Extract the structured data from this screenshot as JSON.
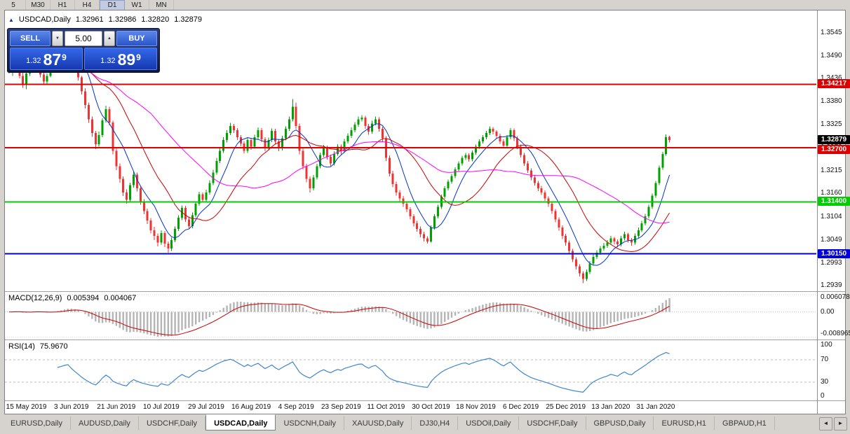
{
  "toolbar": {
    "timeframes": [
      "5",
      "M30",
      "H1",
      "H4",
      "D1",
      "W1",
      "MN"
    ],
    "active": "D1"
  },
  "chart_header": {
    "symbol": "USDCAD,Daily",
    "open": "1.32961",
    "high": "1.32986",
    "low": "1.32820",
    "close": "1.32879"
  },
  "trade_panel": {
    "sell_label": "SELL",
    "buy_label": "BUY",
    "volume": "5.00",
    "sell_price": {
      "prefix": "1.32",
      "big": "87",
      "sup": "9"
    },
    "buy_price": {
      "prefix": "1.32",
      "big": "89",
      "sup": "9"
    }
  },
  "price_axis": {
    "labels": [
      "1.3545",
      "1.3490",
      "1.3436",
      "1.3380",
      "1.3325",
      "1.3270",
      "1.3215",
      "1.3160",
      "1.3104",
      "1.3049",
      "1.2993",
      "1.2939"
    ]
  },
  "hlines": [
    {
      "price": 1.34217,
      "label": "1.34217",
      "color": "#dd0000"
    },
    {
      "price": 1.327,
      "label": "1.32700",
      "color": "#dd0000"
    },
    {
      "price": 1.314,
      "label": "1.31400",
      "color": "#00cc00"
    },
    {
      "price": 1.3015,
      "label": "1.30150",
      "color": "#0000dd"
    }
  ],
  "current_price": {
    "value": 1.32879,
    "label": "1.32879",
    "color": "#000000"
  },
  "macd_panel": {
    "title": "MACD(12,26,9)",
    "main_value": "0.005394",
    "signal_value": "0.004067",
    "axis_max": "0.006078",
    "axis_zero": "0.00",
    "axis_min": "-0.008965"
  },
  "rsi_panel": {
    "title": "RSI(14)",
    "value": "75.9670",
    "axis": [
      "100",
      "70",
      "30",
      "0"
    ]
  },
  "date_axis": {
    "labels": [
      "15 May 2019",
      "3 Jun 2019",
      "21 Jun 2019",
      "10 Jul 2019",
      "29 Jul 2019",
      "16 Aug 2019",
      "4 Sep 2019",
      "23 Sep 2019",
      "11 Oct 2019",
      "30 Oct 2019",
      "18 Nov 2019",
      "6 Dec 2019",
      "25 Dec 2019",
      "13 Jan 2020",
      "31 Jan 2020"
    ]
  },
  "tabs": {
    "items": [
      "EURUSD,Daily",
      "AUDUSD,Daily",
      "USDCHF,Daily",
      "USDCAD,Daily",
      "USDCNH,Daily",
      "XAUUSD,Daily",
      "DJ30,H4",
      "USDOil,Daily",
      "USDCHF,Daily",
      "GBPUSD,Daily",
      "EURUSD,H1",
      "GBPAUD,H1"
    ],
    "active_index": 3
  },
  "chart_data": {
    "type": "candlestick",
    "symbol": "USDCAD",
    "timeframe": "Daily",
    "colors": {
      "up": "#00a000",
      "down": "#ee3333"
    },
    "first_label_bar": 5,
    "label_step": 13,
    "overlays": [
      {
        "name": "ma-fast",
        "period": 8,
        "color": "#0033cc"
      },
      {
        "name": "ma-medium",
        "period": 20,
        "color": "#cc0000"
      },
      {
        "name": "ma-slow",
        "period": 42,
        "color": "#ff00ff"
      }
    ],
    "macd": {
      "fast": 12,
      "slow": 26,
      "signal": 9,
      "scale_max": 0.006078,
      "scale_min": -0.008965,
      "hist_color": "#b4b4b4",
      "signal_color": "#cc0000"
    },
    "rsi": {
      "period": 14,
      "levels": [
        70,
        30
      ],
      "color": "#3f85cc"
    },
    "candles": [
      [
        1.3465,
        1.3478,
        1.3448,
        1.3455
      ],
      [
        1.3455,
        1.347,
        1.3442,
        1.3462
      ],
      [
        1.3462,
        1.3484,
        1.3456,
        1.3478
      ],
      [
        1.3478,
        1.3486,
        1.3436,
        1.3442
      ],
      [
        1.3442,
        1.3452,
        1.3413,
        1.342
      ],
      [
        1.342,
        1.3458,
        1.341,
        1.3448
      ],
      [
        1.3448,
        1.3478,
        1.3442,
        1.347
      ],
      [
        1.347,
        1.3492,
        1.3464,
        1.3485
      ],
      [
        1.3485,
        1.349,
        1.3456,
        1.3462
      ],
      [
        1.3462,
        1.347,
        1.3438,
        1.3445
      ],
      [
        1.3445,
        1.3452,
        1.3422,
        1.3428
      ],
      [
        1.3428,
        1.3448,
        1.3423,
        1.3442
      ],
      [
        1.3442,
        1.3464,
        1.3438,
        1.3458
      ],
      [
        1.3458,
        1.3478,
        1.3452,
        1.3472
      ],
      [
        1.3472,
        1.3494,
        1.3468,
        1.3488
      ],
      [
        1.3488,
        1.3504,
        1.3482,
        1.3498
      ],
      [
        1.3498,
        1.3516,
        1.3492,
        1.351
      ],
      [
        1.351,
        1.3528,
        1.3504,
        1.3518
      ],
      [
        1.3518,
        1.3522,
        1.3486,
        1.3492
      ],
      [
        1.3492,
        1.3498,
        1.3458,
        1.3465
      ],
      [
        1.3465,
        1.3472,
        1.3431,
        1.3438
      ],
      [
        1.3438,
        1.3442,
        1.3397,
        1.3405
      ],
      [
        1.3405,
        1.3412,
        1.3364,
        1.3372
      ],
      [
        1.3372,
        1.3378,
        1.3329,
        1.3338
      ],
      [
        1.3338,
        1.3344,
        1.3296,
        1.3305
      ],
      [
        1.3305,
        1.331,
        1.3266,
        1.3278
      ],
      [
        1.3278,
        1.3308,
        1.3272,
        1.33
      ],
      [
        1.33,
        1.334,
        1.3295,
        1.3335
      ],
      [
        1.3335,
        1.337,
        1.333,
        1.3362
      ],
      [
        1.3362,
        1.3368,
        1.3323,
        1.333
      ],
      [
        1.333,
        1.3334,
        1.3254,
        1.3262
      ],
      [
        1.3262,
        1.327,
        1.3216,
        1.3225
      ],
      [
        1.3225,
        1.3232,
        1.3186,
        1.3195
      ],
      [
        1.3195,
        1.3201,
        1.3154,
        1.3162
      ],
      [
        1.3162,
        1.317,
        1.3135,
        1.3145
      ],
      [
        1.3145,
        1.3186,
        1.314,
        1.318
      ],
      [
        1.318,
        1.3212,
        1.3174,
        1.3205
      ],
      [
        1.3205,
        1.321,
        1.3165,
        1.3172
      ],
      [
        1.3172,
        1.3178,
        1.3133,
        1.314
      ],
      [
        1.314,
        1.3146,
        1.311,
        1.3118
      ],
      [
        1.3118,
        1.3124,
        1.3087,
        1.3095
      ],
      [
        1.3095,
        1.3101,
        1.3064,
        1.3072
      ],
      [
        1.3072,
        1.308,
        1.3048,
        1.3058
      ],
      [
        1.3058,
        1.3064,
        1.3033,
        1.3042
      ],
      [
        1.3042,
        1.3072,
        1.3037,
        1.3065
      ],
      [
        1.3065,
        1.307,
        1.3031,
        1.304
      ],
      [
        1.304,
        1.3045,
        1.3018,
        1.3028
      ],
      [
        1.3028,
        1.3054,
        1.3022,
        1.3048
      ],
      [
        1.3048,
        1.3081,
        1.3043,
        1.3075
      ],
      [
        1.3075,
        1.3108,
        1.307,
        1.3102
      ],
      [
        1.3102,
        1.3131,
        1.3096,
        1.3125
      ],
      [
        1.3125,
        1.313,
        1.3092,
        1.3098
      ],
      [
        1.3098,
        1.3104,
        1.3074,
        1.3082
      ],
      [
        1.3082,
        1.3114,
        1.3077,
        1.3108
      ],
      [
        1.3108,
        1.3141,
        1.3103,
        1.3135
      ],
      [
        1.3135,
        1.3164,
        1.313,
        1.3158
      ],
      [
        1.3158,
        1.3162,
        1.3138,
        1.3145
      ],
      [
        1.3145,
        1.3169,
        1.314,
        1.3162
      ],
      [
        1.3162,
        1.3192,
        1.3157,
        1.3185
      ],
      [
        1.3185,
        1.3217,
        1.318,
        1.321
      ],
      [
        1.321,
        1.3245,
        1.3205,
        1.3238
      ],
      [
        1.3238,
        1.3269,
        1.3233,
        1.3262
      ],
      [
        1.3262,
        1.3295,
        1.3257,
        1.3288
      ],
      [
        1.3288,
        1.3312,
        1.3282,
        1.3305
      ],
      [
        1.3305,
        1.3329,
        1.33,
        1.3322
      ],
      [
        1.3322,
        1.3327,
        1.3305,
        1.3312
      ],
      [
        1.3312,
        1.3317,
        1.3288,
        1.3295
      ],
      [
        1.3295,
        1.33,
        1.3273,
        1.328
      ],
      [
        1.328,
        1.3285,
        1.3256,
        1.3262
      ],
      [
        1.3262,
        1.3294,
        1.3257,
        1.3288
      ],
      [
        1.3288,
        1.3293,
        1.3265,
        1.3272
      ],
      [
        1.3272,
        1.3301,
        1.3267,
        1.3295
      ],
      [
        1.3295,
        1.3318,
        1.329,
        1.3312
      ],
      [
        1.3312,
        1.3317,
        1.3283,
        1.329
      ],
      [
        1.329,
        1.3295,
        1.3261,
        1.3268
      ],
      [
        1.3268,
        1.3294,
        1.3263,
        1.3288
      ],
      [
        1.3288,
        1.3316,
        1.3283,
        1.331
      ],
      [
        1.331,
        1.3315,
        1.3279,
        1.3285
      ],
      [
        1.3285,
        1.329,
        1.3261,
        1.3268
      ],
      [
        1.3268,
        1.3298,
        1.3263,
        1.3292
      ],
      [
        1.3292,
        1.3321,
        1.3287,
        1.3315
      ],
      [
        1.3315,
        1.3344,
        1.331,
        1.3338
      ],
      [
        1.3338,
        1.3386,
        1.3333,
        1.3368
      ],
      [
        1.3368,
        1.3378,
        1.3315,
        1.3322
      ],
      [
        1.3322,
        1.3328,
        1.3254,
        1.3262
      ],
      [
        1.3262,
        1.3268,
        1.3218,
        1.3225
      ],
      [
        1.3225,
        1.3231,
        1.3187,
        1.3195
      ],
      [
        1.3195,
        1.3201,
        1.3162,
        1.3172
      ],
      [
        1.3172,
        1.3204,
        1.3167,
        1.3198
      ],
      [
        1.3198,
        1.3231,
        1.3193,
        1.3225
      ],
      [
        1.3225,
        1.3258,
        1.322,
        1.3252
      ],
      [
        1.3252,
        1.3276,
        1.3247,
        1.327
      ],
      [
        1.327,
        1.3275,
        1.3241,
        1.3248
      ],
      [
        1.3248,
        1.3253,
        1.3225,
        1.3232
      ],
      [
        1.3232,
        1.3261,
        1.3227,
        1.3255
      ],
      [
        1.3255,
        1.3278,
        1.325,
        1.3272
      ],
      [
        1.3272,
        1.3277,
        1.3254,
        1.3262
      ],
      [
        1.3262,
        1.3291,
        1.3257,
        1.3285
      ],
      [
        1.3285,
        1.3304,
        1.328,
        1.3298
      ],
      [
        1.3298,
        1.3318,
        1.3293,
        1.3312
      ],
      [
        1.3312,
        1.3331,
        1.3307,
        1.3325
      ],
      [
        1.3325,
        1.3344,
        1.332,
        1.3338
      ],
      [
        1.3338,
        1.3348,
        1.3333,
        1.3342
      ],
      [
        1.3342,
        1.3346,
        1.3315,
        1.3322
      ],
      [
        1.3322,
        1.3327,
        1.3301,
        1.3308
      ],
      [
        1.3308,
        1.3334,
        1.3303,
        1.3328
      ],
      [
        1.3328,
        1.3344,
        1.3323,
        1.3338
      ],
      [
        1.3338,
        1.3343,
        1.3308,
        1.3315
      ],
      [
        1.3315,
        1.332,
        1.3285,
        1.3292
      ],
      [
        1.3292,
        1.3297,
        1.3238,
        1.3245
      ],
      [
        1.3245,
        1.3251,
        1.3201,
        1.3208
      ],
      [
        1.3208,
        1.3214,
        1.3175,
        1.3182
      ],
      [
        1.3182,
        1.3188,
        1.3155,
        1.3162
      ],
      [
        1.3162,
        1.3168,
        1.3141,
        1.3148
      ],
      [
        1.3148,
        1.3154,
        1.3128,
        1.3135
      ],
      [
        1.3135,
        1.3141,
        1.3115,
        1.3122
      ],
      [
        1.3122,
        1.3127,
        1.3098,
        1.3105
      ],
      [
        1.3105,
        1.311,
        1.3081,
        1.3088
      ],
      [
        1.3088,
        1.3094,
        1.3068,
        1.3075
      ],
      [
        1.3075,
        1.3081,
        1.3055,
        1.3062
      ],
      [
        1.3062,
        1.3068,
        1.3045,
        1.3052
      ],
      [
        1.3052,
        1.3057,
        1.304,
        1.3045
      ],
      [
        1.3045,
        1.3083,
        1.3042,
        1.3078
      ],
      [
        1.3078,
        1.311,
        1.3073,
        1.3105
      ],
      [
        1.3105,
        1.3133,
        1.31,
        1.3128
      ],
      [
        1.3128,
        1.3157,
        1.3123,
        1.3152
      ],
      [
        1.3152,
        1.3177,
        1.3147,
        1.3172
      ],
      [
        1.3172,
        1.3193,
        1.3167,
        1.3188
      ],
      [
        1.3188,
        1.3207,
        1.3183,
        1.3202
      ],
      [
        1.3202,
        1.3223,
        1.3197,
        1.3218
      ],
      [
        1.3218,
        1.3237,
        1.3213,
        1.3232
      ],
      [
        1.3232,
        1.325,
        1.3227,
        1.3245
      ],
      [
        1.3245,
        1.3257,
        1.324,
        1.3252
      ],
      [
        1.3252,
        1.3256,
        1.3236,
        1.3242
      ],
      [
        1.3242,
        1.3263,
        1.3237,
        1.3258
      ],
      [
        1.3258,
        1.3277,
        1.3253,
        1.3272
      ],
      [
        1.3272,
        1.329,
        1.3267,
        1.3285
      ],
      [
        1.3285,
        1.33,
        1.328,
        1.3295
      ],
      [
        1.3295,
        1.331,
        1.329,
        1.3305
      ],
      [
        1.3305,
        1.3321,
        1.33,
        1.3315
      ],
      [
        1.3315,
        1.3319,
        1.3302,
        1.3308
      ],
      [
        1.3308,
        1.3312,
        1.3292,
        1.3298
      ],
      [
        1.3298,
        1.3303,
        1.3279,
        1.3285
      ],
      [
        1.3285,
        1.329,
        1.3269,
        1.3275
      ],
      [
        1.3275,
        1.33,
        1.327,
        1.3295
      ],
      [
        1.3295,
        1.3317,
        1.329,
        1.3312
      ],
      [
        1.3312,
        1.3316,
        1.3286,
        1.3292
      ],
      [
        1.3292,
        1.3297,
        1.3266,
        1.3272
      ],
      [
        1.3272,
        1.3277,
        1.3246,
        1.3252
      ],
      [
        1.3252,
        1.3257,
        1.3226,
        1.3232
      ],
      [
        1.3232,
        1.3238,
        1.3209,
        1.3215
      ],
      [
        1.3215,
        1.322,
        1.3192,
        1.3198
      ],
      [
        1.3198,
        1.3204,
        1.3179,
        1.3185
      ],
      [
        1.3185,
        1.319,
        1.3166,
        1.3172
      ],
      [
        1.3172,
        1.3178,
        1.3156,
        1.3162
      ],
      [
        1.3162,
        1.3167,
        1.3142,
        1.3148
      ],
      [
        1.3148,
        1.3153,
        1.3128,
        1.3135
      ],
      [
        1.3135,
        1.314,
        1.3111,
        1.3118
      ],
      [
        1.3118,
        1.3123,
        1.3091,
        1.3098
      ],
      [
        1.3098,
        1.3103,
        1.3071,
        1.3078
      ],
      [
        1.3078,
        1.3083,
        1.3051,
        1.3058
      ],
      [
        1.3058,
        1.3063,
        1.3035,
        1.3042
      ],
      [
        1.3042,
        1.3047,
        1.3015,
        1.3022
      ],
      [
        1.3022,
        1.3027,
        1.2995,
        1.3002
      ],
      [
        1.3002,
        1.3007,
        1.2978,
        1.2985
      ],
      [
        1.2985,
        1.299,
        1.2961,
        1.2968
      ],
      [
        1.2968,
        1.2973,
        1.2945,
        1.2955
      ],
      [
        1.2955,
        1.2978,
        1.295,
        1.2972
      ],
      [
        1.2972,
        1.2998,
        1.2967,
        1.2992
      ],
      [
        1.2992,
        1.3014,
        1.2987,
        1.3008
      ],
      [
        1.3008,
        1.3024,
        1.3003,
        1.3018
      ],
      [
        1.3018,
        1.3034,
        1.3013,
        1.3028
      ],
      [
        1.3028,
        1.3041,
        1.3023,
        1.3035
      ],
      [
        1.3035,
        1.3048,
        1.303,
        1.3042
      ],
      [
        1.3042,
        1.3058,
        1.3037,
        1.3052
      ],
      [
        1.3052,
        1.3056,
        1.3038,
        1.3045
      ],
      [
        1.3045,
        1.305,
        1.3031,
        1.3038
      ],
      [
        1.3038,
        1.3058,
        1.3033,
        1.3052
      ],
      [
        1.3052,
        1.3068,
        1.3047,
        1.3062
      ],
      [
        1.3062,
        1.3066,
        1.3042,
        1.3048
      ],
      [
        1.3048,
        1.3053,
        1.3035,
        1.3042
      ],
      [
        1.3042,
        1.3064,
        1.3037,
        1.3058
      ],
      [
        1.3058,
        1.3078,
        1.3053,
        1.3072
      ],
      [
        1.3072,
        1.3094,
        1.3067,
        1.3088
      ],
      [
        1.3088,
        1.3111,
        1.3083,
        1.3105
      ],
      [
        1.3105,
        1.3133,
        1.31,
        1.3128
      ],
      [
        1.3128,
        1.316,
        1.3123,
        1.3155
      ],
      [
        1.3155,
        1.319,
        1.315,
        1.3185
      ],
      [
        1.3185,
        1.3227,
        1.318,
        1.3222
      ],
      [
        1.3222,
        1.326,
        1.3217,
        1.3255
      ],
      [
        1.3255,
        1.3302,
        1.325,
        1.3295
      ],
      [
        1.32961,
        1.32986,
        1.3282,
        1.32879
      ]
    ]
  }
}
